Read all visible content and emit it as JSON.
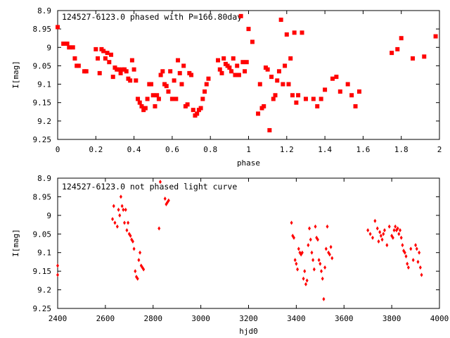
{
  "chart_data": [
    {
      "type": "scatter",
      "title": "124527-6123.0 phased with P=166.80day",
      "xlabel": "phase",
      "ylabel": "I[mag]",
      "xlim": [
        0,
        2
      ],
      "ylim": [
        8.9,
        9.25
      ],
      "y_inverted": true,
      "x_ticks": [
        "0",
        "0.2",
        "0.4",
        "0.6",
        "0.8",
        "1",
        "1.2",
        "1.4",
        "1.6",
        "1.8",
        "2"
      ],
      "y_ticks": [
        "8.9",
        "8.95",
        "9",
        "9.05",
        "9.1",
        "9.15",
        "9.2",
        "9.25"
      ],
      "marker_color": "#ff0000",
      "marker": "filled-square",
      "series": [
        {
          "points": [
            [
              0.0,
              8.945
            ],
            [
              0.03,
              8.99
            ],
            [
              0.05,
              8.99
            ],
            [
              0.06,
              9.0
            ],
            [
              0.08,
              9.0
            ],
            [
              0.09,
              9.03
            ],
            [
              0.1,
              9.05
            ],
            [
              0.11,
              9.05
            ],
            [
              0.14,
              9.065
            ],
            [
              0.15,
              9.065
            ],
            [
              0.2,
              9.005
            ],
            [
              0.21,
              9.03
            ],
            [
              0.22,
              9.07
            ],
            [
              0.23,
              9.005
            ],
            [
              0.24,
              9.01
            ],
            [
              0.25,
              9.03
            ],
            [
              0.26,
              9.015
            ],
            [
              0.27,
              9.04
            ],
            [
              0.28,
              9.02
            ],
            [
              0.29,
              9.08
            ],
            [
              0.3,
              9.055
            ],
            [
              0.31,
              9.06
            ],
            [
              0.32,
              9.06
            ],
            [
              0.33,
              9.07
            ],
            [
              0.34,
              9.06
            ],
            [
              0.35,
              9.06
            ],
            [
              0.36,
              9.065
            ],
            [
              0.37,
              9.085
            ],
            [
              0.38,
              9.09
            ],
            [
              0.39,
              9.035
            ],
            [
              0.4,
              9.06
            ],
            [
              0.41,
              9.09
            ],
            [
              0.42,
              9.14
            ],
            [
              0.43,
              9.15
            ],
            [
              0.44,
              9.16
            ],
            [
              0.45,
              9.17
            ],
            [
              0.46,
              9.165
            ],
            [
              0.47,
              9.14
            ],
            [
              0.48,
              9.1
            ],
            [
              0.49,
              9.1
            ],
            [
              0.5,
              9.13
            ],
            [
              0.51,
              9.16
            ],
            [
              0.52,
              9.13
            ],
            [
              0.53,
              9.14
            ],
            [
              0.54,
              9.075
            ],
            [
              0.55,
              9.065
            ],
            [
              0.56,
              9.1
            ],
            [
              0.57,
              9.105
            ],
            [
              0.58,
              9.12
            ],
            [
              0.59,
              9.065
            ],
            [
              0.6,
              9.14
            ],
            [
              0.61,
              9.09
            ],
            [
              0.62,
              9.14
            ],
            [
              0.63,
              9.035
            ],
            [
              0.64,
              9.07
            ],
            [
              0.65,
              9.1
            ],
            [
              0.66,
              9.05
            ],
            [
              0.67,
              9.16
            ],
            [
              0.68,
              9.155
            ],
            [
              0.69,
              9.07
            ],
            [
              0.7,
              9.075
            ],
            [
              0.71,
              9.17
            ],
            [
              0.72,
              9.185
            ],
            [
              0.73,
              9.18
            ],
            [
              0.74,
              9.17
            ],
            [
              0.75,
              9.165
            ],
            [
              0.76,
              9.14
            ],
            [
              0.77,
              9.12
            ],
            [
              0.78,
              9.1
            ],
            [
              0.79,
              9.085
            ],
            [
              0.84,
              9.035
            ],
            [
              0.85,
              9.06
            ],
            [
              0.86,
              9.07
            ],
            [
              0.87,
              9.03
            ],
            [
              0.88,
              9.045
            ],
            [
              0.89,
              9.05
            ],
            [
              0.9,
              9.055
            ],
            [
              0.91,
              9.065
            ],
            [
              0.92,
              9.03
            ],
            [
              0.93,
              9.075
            ],
            [
              0.94,
              9.05
            ],
            [
              0.95,
              9.075
            ],
            [
              0.96,
              8.915
            ],
            [
              0.97,
              9.04
            ],
            [
              0.98,
              9.065
            ],
            [
              0.99,
              9.04
            ],
            [
              1.0,
              8.95
            ],
            [
              1.02,
              8.985
            ],
            [
              1.05,
              9.18
            ],
            [
              1.06,
              9.1
            ],
            [
              1.07,
              9.165
            ],
            [
              1.08,
              9.16
            ],
            [
              1.09,
              9.055
            ],
            [
              1.1,
              9.06
            ],
            [
              1.11,
              9.225
            ],
            [
              1.12,
              9.08
            ],
            [
              1.13,
              9.14
            ],
            [
              1.14,
              9.13
            ],
            [
              1.15,
              9.09
            ],
            [
              1.16,
              9.065
            ],
            [
              1.17,
              8.925
            ],
            [
              1.18,
              9.1
            ],
            [
              1.19,
              9.05
            ],
            [
              1.2,
              8.965
            ],
            [
              1.21,
              9.1
            ],
            [
              1.22,
              9.03
            ],
            [
              1.23,
              9.13
            ],
            [
              1.24,
              8.96
            ],
            [
              1.25,
              9.15
            ],
            [
              1.26,
              9.13
            ],
            [
              1.28,
              8.96
            ],
            [
              1.3,
              9.14
            ],
            [
              1.34,
              9.14
            ],
            [
              1.36,
              9.16
            ],
            [
              1.38,
              9.14
            ],
            [
              1.4,
              9.115
            ],
            [
              1.44,
              9.085
            ],
            [
              1.46,
              9.08
            ],
            [
              1.48,
              9.12
            ],
            [
              1.52,
              9.1
            ],
            [
              1.54,
              9.13
            ],
            [
              1.56,
              9.16
            ],
            [
              1.58,
              9.12
            ],
            [
              1.75,
              9.015
            ],
            [
              1.78,
              9.005
            ],
            [
              1.8,
              8.975
            ],
            [
              1.86,
              9.03
            ],
            [
              1.92,
              9.025
            ],
            [
              1.98,
              8.97
            ]
          ]
        }
      ]
    },
    {
      "type": "scatter",
      "title": "124527-6123.0 not phased light curve",
      "xlabel": "hjd0",
      "ylabel": "I[mag]",
      "xlim": [
        2400,
        4000
      ],
      "ylim": [
        8.9,
        9.25
      ],
      "y_inverted": true,
      "x_ticks": [
        "2400",
        "2600",
        "2800",
        "3000",
        "3200",
        "3400",
        "3600",
        "3800",
        "4000"
      ],
      "y_ticks": [
        "8.9",
        "8.95",
        "9",
        "9.05",
        "9.1",
        "9.15",
        "9.2",
        "9.25"
      ],
      "marker_color": "#ff0000",
      "marker": "small-diamond",
      "series": [
        {
          "points": [
            [
              2400,
              9.135
            ],
            [
              2400,
              9.16
            ],
            [
              2630,
              9.01
            ],
            [
              2635,
              8.975
            ],
            [
              2640,
              9.02
            ],
            [
              2650,
              9.03
            ],
            [
              2655,
              8.985
            ],
            [
              2660,
              9.0
            ],
            [
              2665,
              8.95
            ],
            [
              2670,
              8.975
            ],
            [
              2675,
              8.985
            ],
            [
              2680,
              9.02
            ],
            [
              2685,
              8.985
            ],
            [
              2690,
              9.04
            ],
            [
              2695,
              9.02
            ],
            [
              2700,
              9.05
            ],
            [
              2705,
              9.055
            ],
            [
              2710,
              9.065
            ],
            [
              2715,
              9.07
            ],
            [
              2720,
              9.09
            ],
            [
              2725,
              9.15
            ],
            [
              2730,
              9.165
            ],
            [
              2735,
              9.17
            ],
            [
              2740,
              9.12
            ],
            [
              2745,
              9.1
            ],
            [
              2750,
              9.135
            ],
            [
              2755,
              9.14
            ],
            [
              2760,
              9.145
            ],
            [
              2825,
              9.035
            ],
            [
              2830,
              8.91
            ],
            [
              2850,
              8.955
            ],
            [
              2855,
              8.97
            ],
            [
              2860,
              8.965
            ],
            [
              2865,
              8.96
            ],
            [
              3380,
              9.02
            ],
            [
              3385,
              9.055
            ],
            [
              3390,
              9.06
            ],
            [
              3395,
              9.12
            ],
            [
              3400,
              9.13
            ],
            [
              3405,
              9.145
            ],
            [
              3410,
              9.09
            ],
            [
              3415,
              9.1
            ],
            [
              3420,
              9.105
            ],
            [
              3425,
              9.1
            ],
            [
              3430,
              9.17
            ],
            [
              3435,
              9.15
            ],
            [
              3440,
              9.185
            ],
            [
              3445,
              9.175
            ],
            [
              3450,
              9.08
            ],
            [
              3455,
              9.035
            ],
            [
              3460,
              9.065
            ],
            [
              3465,
              9.1
            ],
            [
              3470,
              9.12
            ],
            [
              3475,
              9.145
            ],
            [
              3480,
              9.03
            ],
            [
              3485,
              9.06
            ],
            [
              3490,
              9.065
            ],
            [
              3495,
              9.12
            ],
            [
              3500,
              9.13
            ],
            [
              3505,
              9.15
            ],
            [
              3510,
              9.17
            ],
            [
              3515,
              9.225
            ],
            [
              3520,
              9.14
            ],
            [
              3525,
              9.09
            ],
            [
              3530,
              9.03
            ],
            [
              3535,
              9.1
            ],
            [
              3540,
              9.105
            ],
            [
              3545,
              9.085
            ],
            [
              3550,
              9.115
            ],
            [
              3700,
              9.04
            ],
            [
              3710,
              9.05
            ],
            [
              3720,
              9.06
            ],
            [
              3730,
              9.015
            ],
            [
              3740,
              9.035
            ],
            [
              3745,
              9.07
            ],
            [
              3750,
              9.045
            ],
            [
              3755,
              9.055
            ],
            [
              3760,
              9.065
            ],
            [
              3765,
              9.05
            ],
            [
              3770,
              9.04
            ],
            [
              3780,
              9.08
            ],
            [
              3790,
              9.03
            ],
            [
              3800,
              9.055
            ],
            [
              3805,
              9.06
            ],
            [
              3810,
              9.04
            ],
            [
              3815,
              9.03
            ],
            [
              3820,
              9.04
            ],
            [
              3825,
              9.035
            ],
            [
              3830,
              9.05
            ],
            [
              3835,
              9.04
            ],
            [
              3840,
              9.06
            ],
            [
              3845,
              9.08
            ],
            [
              3850,
              9.095
            ],
            [
              3855,
              9.1
            ],
            [
              3860,
              9.11
            ],
            [
              3865,
              9.13
            ],
            [
              3870,
              9.14
            ],
            [
              3880,
              9.09
            ],
            [
              3890,
              9.12
            ],
            [
              3900,
              9.08
            ],
            [
              3905,
              9.09
            ],
            [
              3910,
              9.125
            ],
            [
              3915,
              9.1
            ],
            [
              3920,
              9.14
            ],
            [
              3925,
              9.16
            ]
          ]
        }
      ]
    }
  ]
}
